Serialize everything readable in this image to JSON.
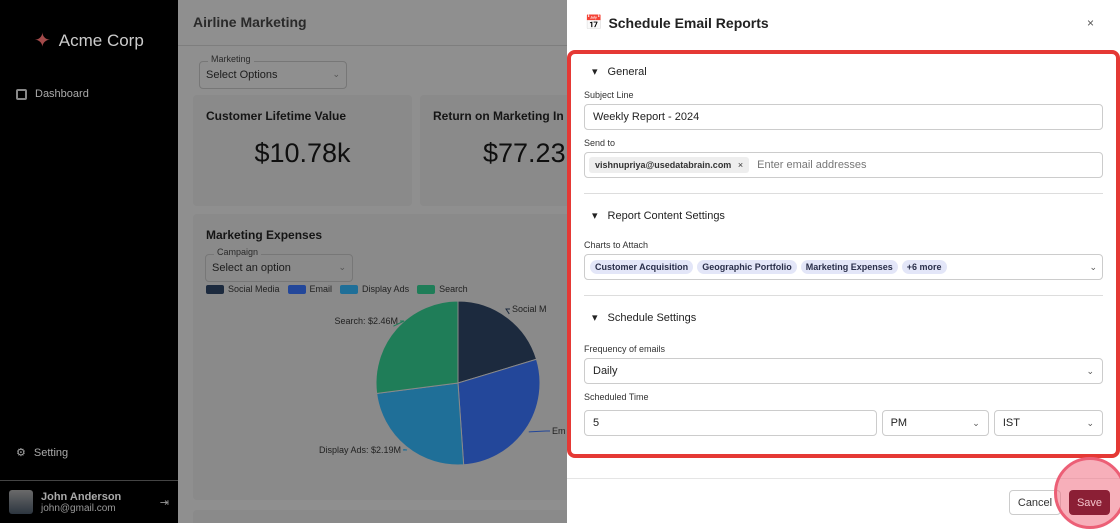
{
  "sidebar": {
    "brand": "Acme Corp",
    "items": [
      {
        "label": "Dashboard"
      }
    ],
    "setting": "Setting",
    "user": {
      "name": "John Anderson",
      "email": "john@gmail.com"
    }
  },
  "main": {
    "title": "Airline Marketing",
    "filter": {
      "label": "Marketing",
      "value": "Select Options"
    },
    "kpis": [
      {
        "title": "Customer Lifetime Value",
        "value": "$10.78k"
      },
      {
        "title": "Return on Marketing In",
        "value": "$77.23"
      }
    ],
    "expenses": {
      "title": "Marketing Expenses",
      "campaign_label": "Campaign",
      "campaign_value": "Select an option"
    }
  },
  "chart_data": {
    "type": "pie",
    "title": "Marketing Expenses",
    "legend": "top-left",
    "labels": [
      "Social Media",
      "Email",
      "Display Ads",
      "Search"
    ],
    "values": [
      1.85,
      2.6,
      2.19,
      2.46
    ],
    "colors": [
      "#1c2a3e",
      "#23479a",
      "#1f6f98",
      "#1f7d58"
    ],
    "data_labels": [
      "Social M",
      "Em",
      "Display Ads: $2.19M",
      "Search: $2.46M"
    ]
  },
  "modal": {
    "title": "Schedule Email Reports",
    "close": "×",
    "general": {
      "title": "General",
      "subject_label": "Subject Line",
      "subject_value": "Weekly Report - 2024",
      "sendto_label": "Send to",
      "recipients": [
        "vishnupriya@usedatabrain.com"
      ],
      "email_placeholder": "Enter email addresses"
    },
    "content": {
      "title": "Report Content Settings",
      "charts_label": "Charts to Attach",
      "charts": [
        "Customer Acquisition",
        "Geographic Portfolio",
        "Marketing Expenses"
      ],
      "more": "+6 more"
    },
    "schedule": {
      "title": "Schedule Settings",
      "freq_label": "Frequency of emails",
      "freq_value": "Daily",
      "time_label": "Scheduled Time",
      "hour": "5",
      "ampm": "PM",
      "tz": "IST"
    },
    "cancel": "Cancel",
    "save": "Save"
  }
}
